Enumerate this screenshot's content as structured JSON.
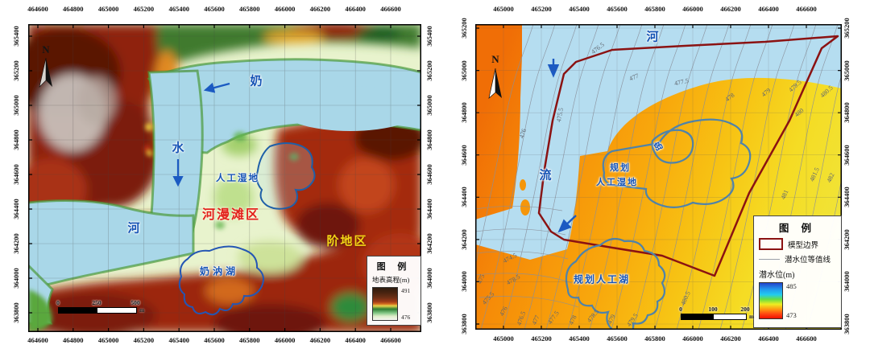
{
  "left_map": {
    "x_ticks": [
      "464600",
      "464800",
      "465000",
      "465200",
      "465400",
      "465600",
      "465800",
      "466000",
      "466200",
      "466400",
      "466600"
    ],
    "y_ticks": [
      "365400",
      "365200",
      "365000",
      "364800",
      "364600",
      "364400",
      "364200",
      "364000",
      "363800"
    ],
    "north_label": "N",
    "labels": {
      "river_char_1": "奶",
      "river_char_2": "水",
      "river_char_3": "河",
      "wetland": "人工湿地",
      "floodplain_zone": "河漫滩区",
      "terrace_zone": "阶地区",
      "lake": "奶汭湖"
    },
    "legend": {
      "title": "图 例",
      "layer_label": "地表高程(m)",
      "max_value": "491",
      "min_value": "476"
    },
    "scalebar": {
      "tick_0": "0",
      "tick_1": "250",
      "tick_2": "500",
      "unit": "m"
    },
    "label_colors": {
      "river_blue": "#1553b5",
      "floodplain_red": "#e2211c",
      "terrace_yellow": "#f2d716"
    }
  },
  "right_map": {
    "x_ticks": [
      "465000",
      "465200",
      "465400",
      "465600",
      "465800",
      "466000",
      "466200",
      "466400",
      "466600"
    ],
    "y_ticks": [
      "365200",
      "365000",
      "364800",
      "364600",
      "364400",
      "364200",
      "364000",
      "363800"
    ],
    "north_label": "N",
    "labels": {
      "river_char_1": "河",
      "river_char_2": "流",
      "island": "岛",
      "wetland_line1": "规划",
      "wetland_line2": "人工湿地",
      "lake": "规划人工湖"
    },
    "contour_labels": [
      "476.5",
      "477",
      "477.5",
      "478",
      "475.5",
      "476",
      "474.5",
      "475",
      "475.5",
      "476",
      "476.5",
      "477",
      "477.5",
      "478",
      "478.5",
      "479",
      "479.5",
      "480.5",
      "478.5",
      "479",
      "479.5",
      "480",
      "480.5",
      "481",
      "481.5",
      "482"
    ],
    "legend": {
      "title": "图 例",
      "boundary_label": "模型边界",
      "contour_label": "潜水位等值线",
      "layer_label": "潜水位(m)",
      "max_value": "485",
      "min_value": "473"
    },
    "scalebar": {
      "tick_0": "0",
      "tick_1": "100",
      "tick_2": "200",
      "unit": "m"
    },
    "colors": {
      "model_boundary": "#8b1212",
      "river_fill": "#b5ddf0",
      "water_table_high_hex": "#2244cc",
      "water_table_low_hex": "#ee1100"
    }
  }
}
